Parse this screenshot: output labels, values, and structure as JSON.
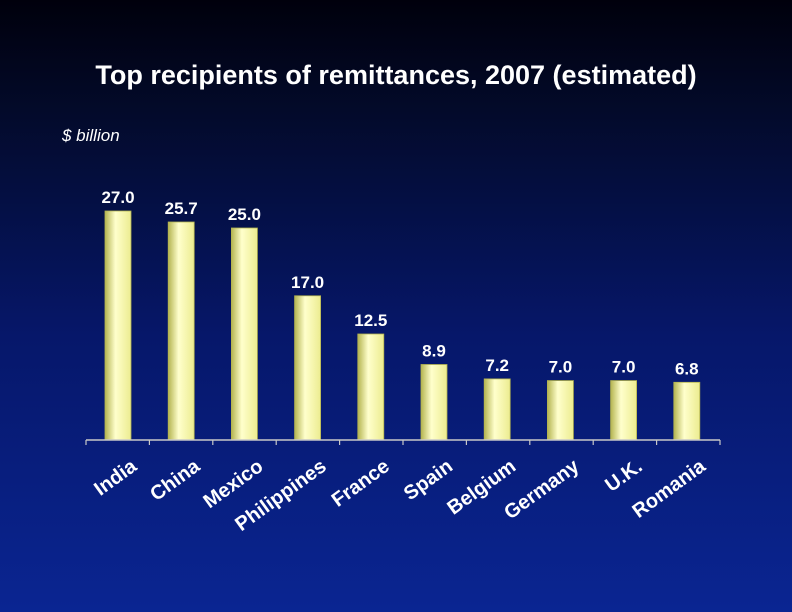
{
  "chart_data": {
    "type": "bar",
    "title": "Top recipients of remittances, 2007 (estimated)",
    "ylabel": "$ billion",
    "xlabel": "",
    "categories": [
      "India",
      "China",
      "Mexico",
      "Philippines",
      "France",
      "Spain",
      "Belgium",
      "Germany",
      "U.K.",
      "Romania"
    ],
    "values": [
      27.0,
      25.7,
      25.0,
      17.0,
      12.5,
      8.9,
      7.2,
      7.0,
      7.0,
      6.8
    ],
    "value_labels": [
      "27.0",
      "25.7",
      "25.0",
      "17.0",
      "12.5",
      "8.9",
      "7.2",
      "7.0",
      "7.0",
      "6.8"
    ],
    "ylim": [
      0,
      27.0
    ],
    "grid": false,
    "colors": {
      "bar": "#ecec90",
      "bar_highlight": "#ffffcc",
      "bar_shadow": "#b4b450",
      "axis": "#c8c8c8",
      "text": "#ffffff"
    }
  }
}
